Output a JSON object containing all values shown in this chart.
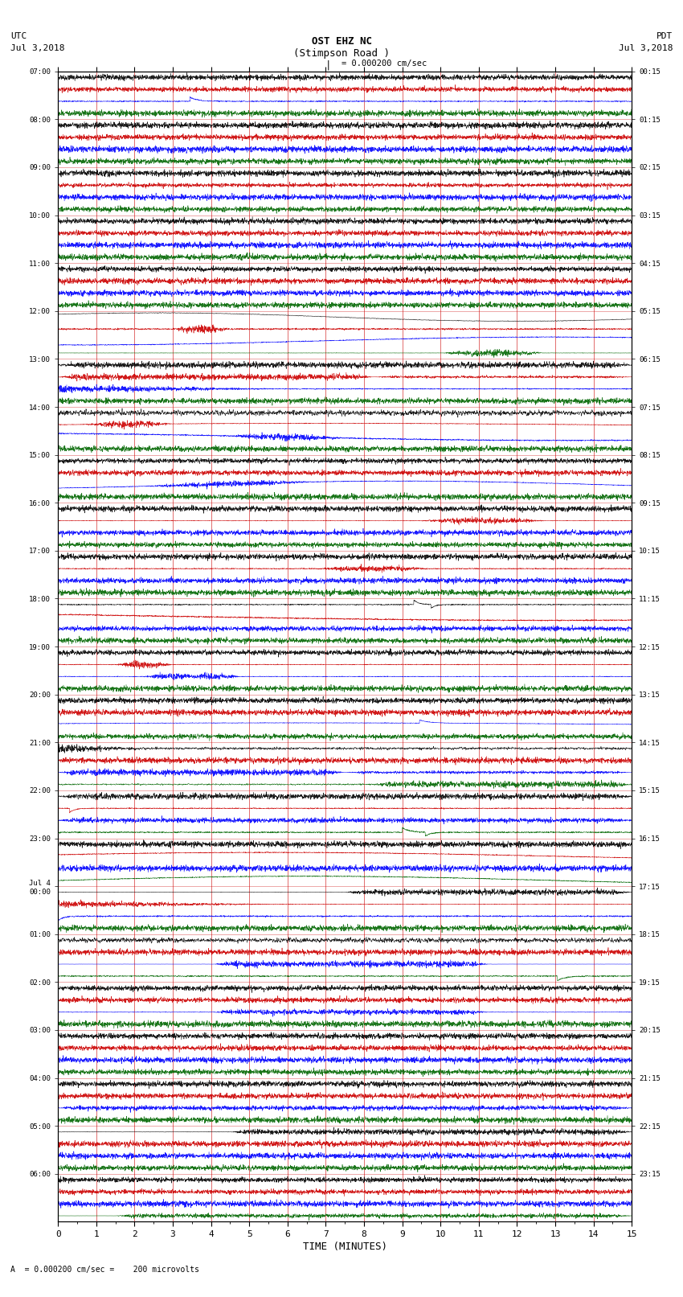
{
  "title_line1": "OST EHZ NC",
  "title_line2": "(Stimpson Road )",
  "title_line3": "I = 0.000200 cm/sec",
  "left_header1": "UTC",
  "left_header2": "Jul 3,2018",
  "right_header1": "PDT",
  "right_header2": "Jul 3,2018",
  "xlabel": "TIME (MINUTES)",
  "footer": "A  = 0.000200 cm/sec =    200 microvolts",
  "bg_color": "#ffffff",
  "grid_color": "#cc0000",
  "trace_colors": [
    "black",
    "#cc0000",
    "blue",
    "#006600"
  ],
  "xmin": 0,
  "xmax": 15,
  "xticks": [
    0,
    1,
    2,
    3,
    4,
    5,
    6,
    7,
    8,
    9,
    10,
    11,
    12,
    13,
    14,
    15
  ],
  "n_hours": 23,
  "utc_hour_labels": [
    "07:00",
    "08:00",
    "09:00",
    "10:00",
    "11:00",
    "12:00",
    "13:00",
    "14:00",
    "15:00",
    "16:00",
    "17:00",
    "18:00",
    "19:00",
    "20:00",
    "21:00",
    "22:00",
    "23:00",
    "Jul 4\n00:00",
    "01:00",
    "02:00",
    "03:00",
    "04:00",
    "05:00",
    "06:00"
  ],
  "pdt_hour_labels": [
    "00:15",
    "01:15",
    "02:15",
    "03:15",
    "04:15",
    "05:15",
    "06:15",
    "07:15",
    "08:15",
    "09:15",
    "10:15",
    "11:15",
    "12:15",
    "13:15",
    "14:15",
    "15:15",
    "16:15",
    "17:15",
    "18:15",
    "19:15",
    "20:15",
    "21:15",
    "22:15",
    "23:15"
  ]
}
